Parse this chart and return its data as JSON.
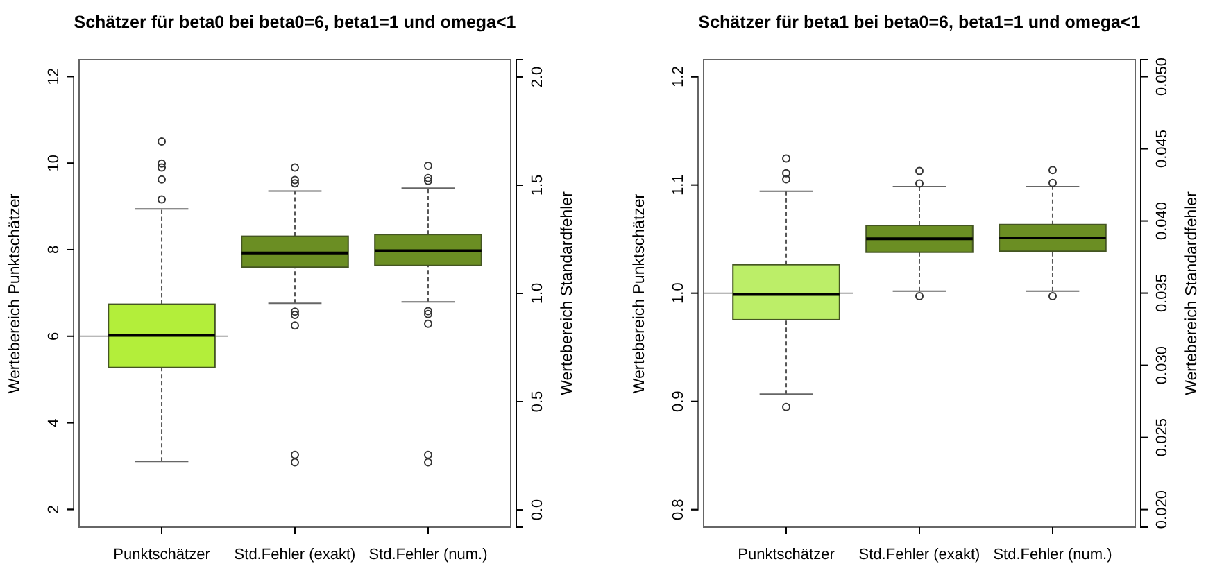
{
  "chart_data": [
    {
      "type": "box",
      "title": "Schätzer für beta0 bei beta0=6, beta1=1 und omega<1",
      "ylabel": "Wertebereich Punktschätzer",
      "y2label": "Wertebereich Standardfehler",
      "categories": [
        "Punktschätzer",
        "Std.Fehler (exakt)",
        "Std.Fehler (num.)"
      ],
      "ylim": [
        1.59,
        12.39
      ],
      "yticks": [
        2,
        4,
        6,
        8,
        10,
        12
      ],
      "y2lim": [
        -0.08,
        2.08
      ],
      "y2ticks": [
        {
          "value": 0,
          "label": "0.0"
        },
        {
          "value": 0.5,
          "label": "0.5"
        },
        {
          "value": 1,
          "label": "1.0"
        },
        {
          "value": 1.5,
          "label": "1.5"
        },
        {
          "value": 2,
          "label": "2.0"
        }
      ],
      "ref_lines": [
        {
          "axis": "y",
          "value": 6,
          "color": "#a0a0a0"
        }
      ],
      "series": [
        {
          "color": "#b3ee3a",
          "boxes": [
            {
              "low": 3.11,
              "q1": 5.28,
              "median": 6.02,
              "q3": 6.74,
              "high": 8.94,
              "outliers": [
                9.16,
                9.62,
                9.9,
                9.99,
                10.5
              ]
            },
            null,
            null
          ]
        },
        {
          "color": "#6b8e23",
          "axis": "y2",
          "boxes": [
            null,
            {
              "low": 0.954,
              "q1": 1.121,
              "median": 1.187,
              "q3": 1.264,
              "high": 1.473,
              "outliers": [
                0.22,
                0.254,
                0.852,
                0.901,
                0.916,
                1.509,
                1.524,
                1.582
              ]
            },
            {
              "low": 0.961,
              "q1": 1.129,
              "median": 1.197,
              "q3": 1.272,
              "high": 1.486,
              "outliers": [
                0.22,
                0.254,
                0.86,
                0.905,
                0.918,
                1.52,
                1.533,
                1.59
              ]
            }
          ]
        }
      ]
    },
    {
      "type": "box",
      "title": "Schätzer für beta1 bei beta0=6, beta1=1 und omega<1",
      "ylabel": "Wertebereich Punktschätzer",
      "y2label": "Wertebereich Standardfehler",
      "categories": [
        "Punktschätzer",
        "Std.Fehler (exakt)",
        "Std.Fehler (num.)"
      ],
      "ylim": [
        0.7838,
        1.2158
      ],
      "yticks": [
        0.8,
        0.9,
        {
          "value": 1,
          "label": "1.0"
        },
        1.1,
        1.2
      ],
      "y2lim": [
        0.01878,
        0.05118
      ],
      "y2ticks": [
        {
          "value": 0.02,
          "label": "0.020"
        },
        {
          "value": 0.025,
          "label": "0.025"
        },
        {
          "value": 0.03,
          "label": "0.030"
        },
        {
          "value": 0.035,
          "label": "0.035"
        },
        {
          "value": 0.04,
          "label": "0.040"
        },
        {
          "value": 0.045,
          "label": "0.045"
        },
        {
          "value": 0.05,
          "label": "0.050"
        }
      ],
      "ref_lines": [
        {
          "axis": "y",
          "value": 1,
          "color": "#a0a0a0"
        }
      ],
      "series": [
        {
          "color": "#bcee68",
          "boxes": [
            {
              "low": 0.9067,
              "q1": 0.9755,
              "median": 0.9989,
              "q3": 1.0263,
              "high": 1.0941,
              "outliers": [
                0.8948,
                1.1052,
                1.1108,
                1.1244
              ]
            },
            null,
            null
          ]
        },
        {
          "color": "#6b8e23",
          "axis": "y2",
          "boxes": [
            null,
            {
              "low": 0.03514,
              "q1": 0.03783,
              "median": 0.03876,
              "q3": 0.03969,
              "high": 0.04238,
              "outliers": [
                0.03479,
                0.0426,
                0.04347
              ]
            },
            {
              "low": 0.03514,
              "q1": 0.0379,
              "median": 0.03883,
              "q3": 0.03975,
              "high": 0.04238,
              "outliers": [
                0.03479,
                0.04264,
                0.04353
              ]
            }
          ]
        }
      ]
    }
  ]
}
